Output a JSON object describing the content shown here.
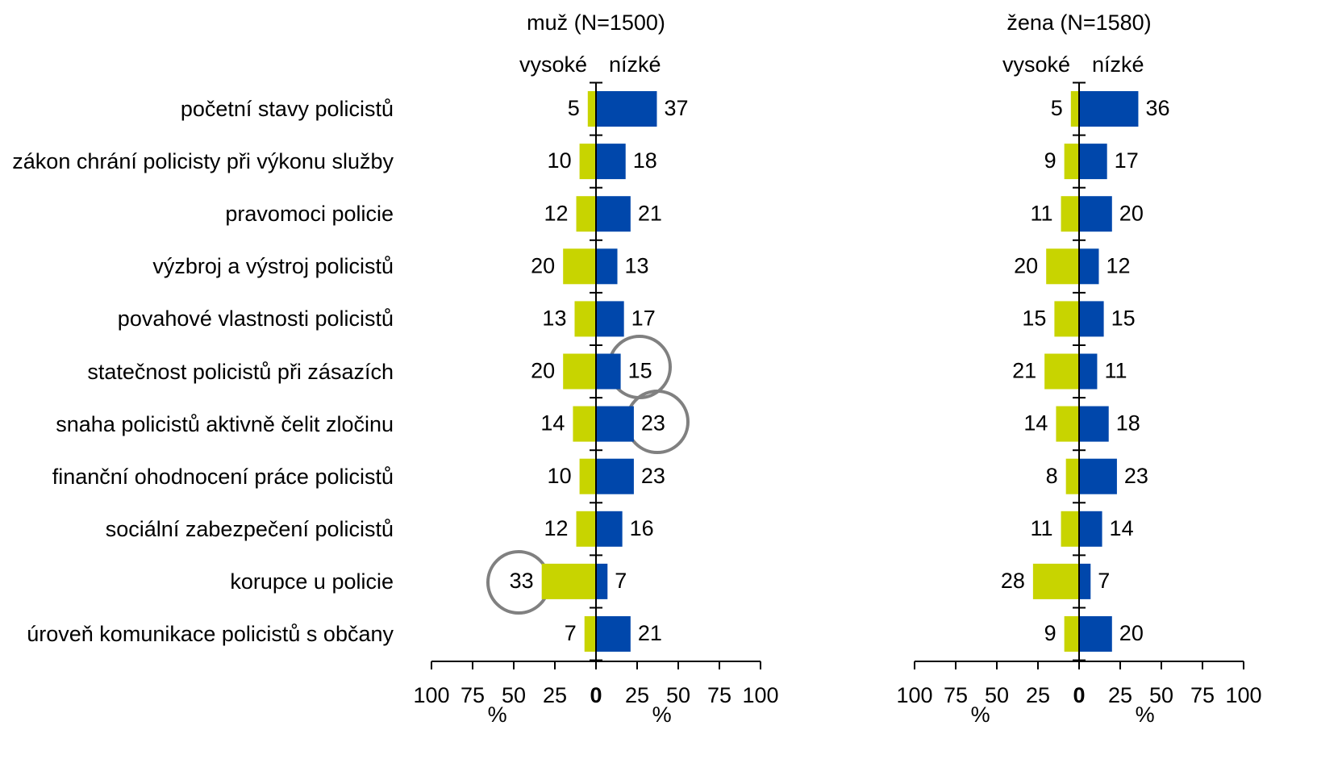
{
  "chart_data": [
    {
      "type": "diverging-bar",
      "title": "muž (N=1500)",
      "categories": [
        "početní stavy policistů",
        "zákon chrání policisty při výkonu služby",
        "pravomoci policie",
        "výzbroj a výstroj policistů",
        "povahové vlastnosti policistů",
        "statečnost policistů při zásazích",
        "snaha policistů aktivně čelit zločinu",
        "finanční ohodnocení práce policistů",
        "sociální zabezpečení policistů",
        "korupce u policie",
        "úroveň komunikace policistů s občany"
      ],
      "series": [
        {
          "name": "vysoké",
          "color": "#c8d400",
          "side": "left",
          "values": [
            5,
            10,
            12,
            20,
            13,
            20,
            14,
            10,
            12,
            33,
            7
          ]
        },
        {
          "name": "nízké",
          "color": "#0047ab",
          "side": "right",
          "values": [
            37,
            18,
            21,
            13,
            17,
            15,
            23,
            23,
            16,
            7,
            21
          ]
        }
      ],
      "xlim": [
        -100,
        100
      ],
      "xticks": [
        {
          "value": -100,
          "label": "100"
        },
        {
          "value": -75,
          "label": "75"
        },
        {
          "value": -50,
          "label": "50"
        },
        {
          "value": -25,
          "label": "25"
        },
        0,
        25,
        50,
        75,
        100
      ],
      "xlabels": [
        "%",
        "%"
      ]
    },
    {
      "type": "diverging-bar",
      "title": "žena (N=1580)",
      "series": [
        {
          "name": "vysoké",
          "color": "#c8d400",
          "side": "left",
          "values": [
            5,
            9,
            11,
            20,
            15,
            21,
            14,
            8,
            11,
            28,
            9
          ]
        },
        {
          "name": "nízké",
          "color": "#0047ab",
          "side": "right",
          "values": [
            36,
            17,
            20,
            12,
            15,
            11,
            18,
            23,
            14,
            7,
            20
          ]
        }
      ],
      "xlim": [
        -100,
        100
      ],
      "xticks": [
        {
          "value": -100,
          "label": "100"
        },
        {
          "value": -75,
          "label": "75"
        },
        {
          "value": -50,
          "label": "50"
        },
        {
          "value": -25,
          "label": "25"
        },
        0,
        25,
        50,
        75,
        100
      ],
      "xlabels": [
        "%",
        "%"
      ]
    }
  ]
}
